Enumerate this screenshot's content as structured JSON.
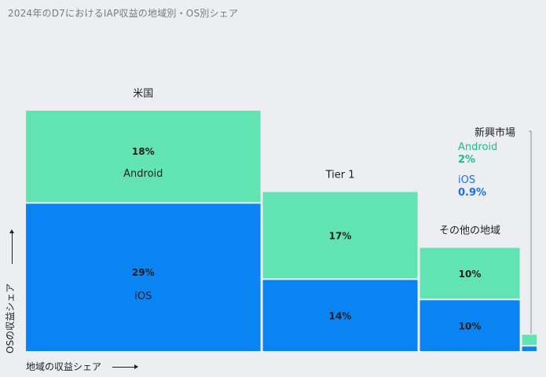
{
  "title": "2024年のD7におけるIAP収益の地域別・OS別シェア",
  "axes": {
    "x_label": "地域の収益シェア",
    "y_label": "OSの収益シェア"
  },
  "colors": {
    "android": "#62e3b3",
    "ios": "#0a83f5",
    "android_text": "#1fbf85",
    "ios_text": "#1d6ff2"
  },
  "chart_data": {
    "type": "mekko",
    "regions": [
      {
        "name": "米国",
        "segments": [
          {
            "os": "Android",
            "label": "18%",
            "os_label": "Android",
            "value": 18
          },
          {
            "os": "iOS",
            "label": "29%",
            "os_label": "iOS",
            "value": 29
          }
        ]
      },
      {
        "name": "Tier 1",
        "segments": [
          {
            "os": "Android",
            "label": "17%",
            "value": 17
          },
          {
            "os": "iOS",
            "label": "14%",
            "value": 14
          }
        ]
      },
      {
        "name": "その他の地域",
        "segments": [
          {
            "os": "Android",
            "label": "10%",
            "value": 10
          },
          {
            "os": "iOS",
            "label": "10%",
            "value": 10
          }
        ]
      },
      {
        "name": "新興市場",
        "segments": [
          {
            "os": "Android",
            "label": "2%",
            "os_label": "Android",
            "value": 2
          },
          {
            "os": "iOS",
            "label": "0.9%",
            "os_label": "iOS",
            "value": 0.9
          }
        ]
      }
    ]
  }
}
